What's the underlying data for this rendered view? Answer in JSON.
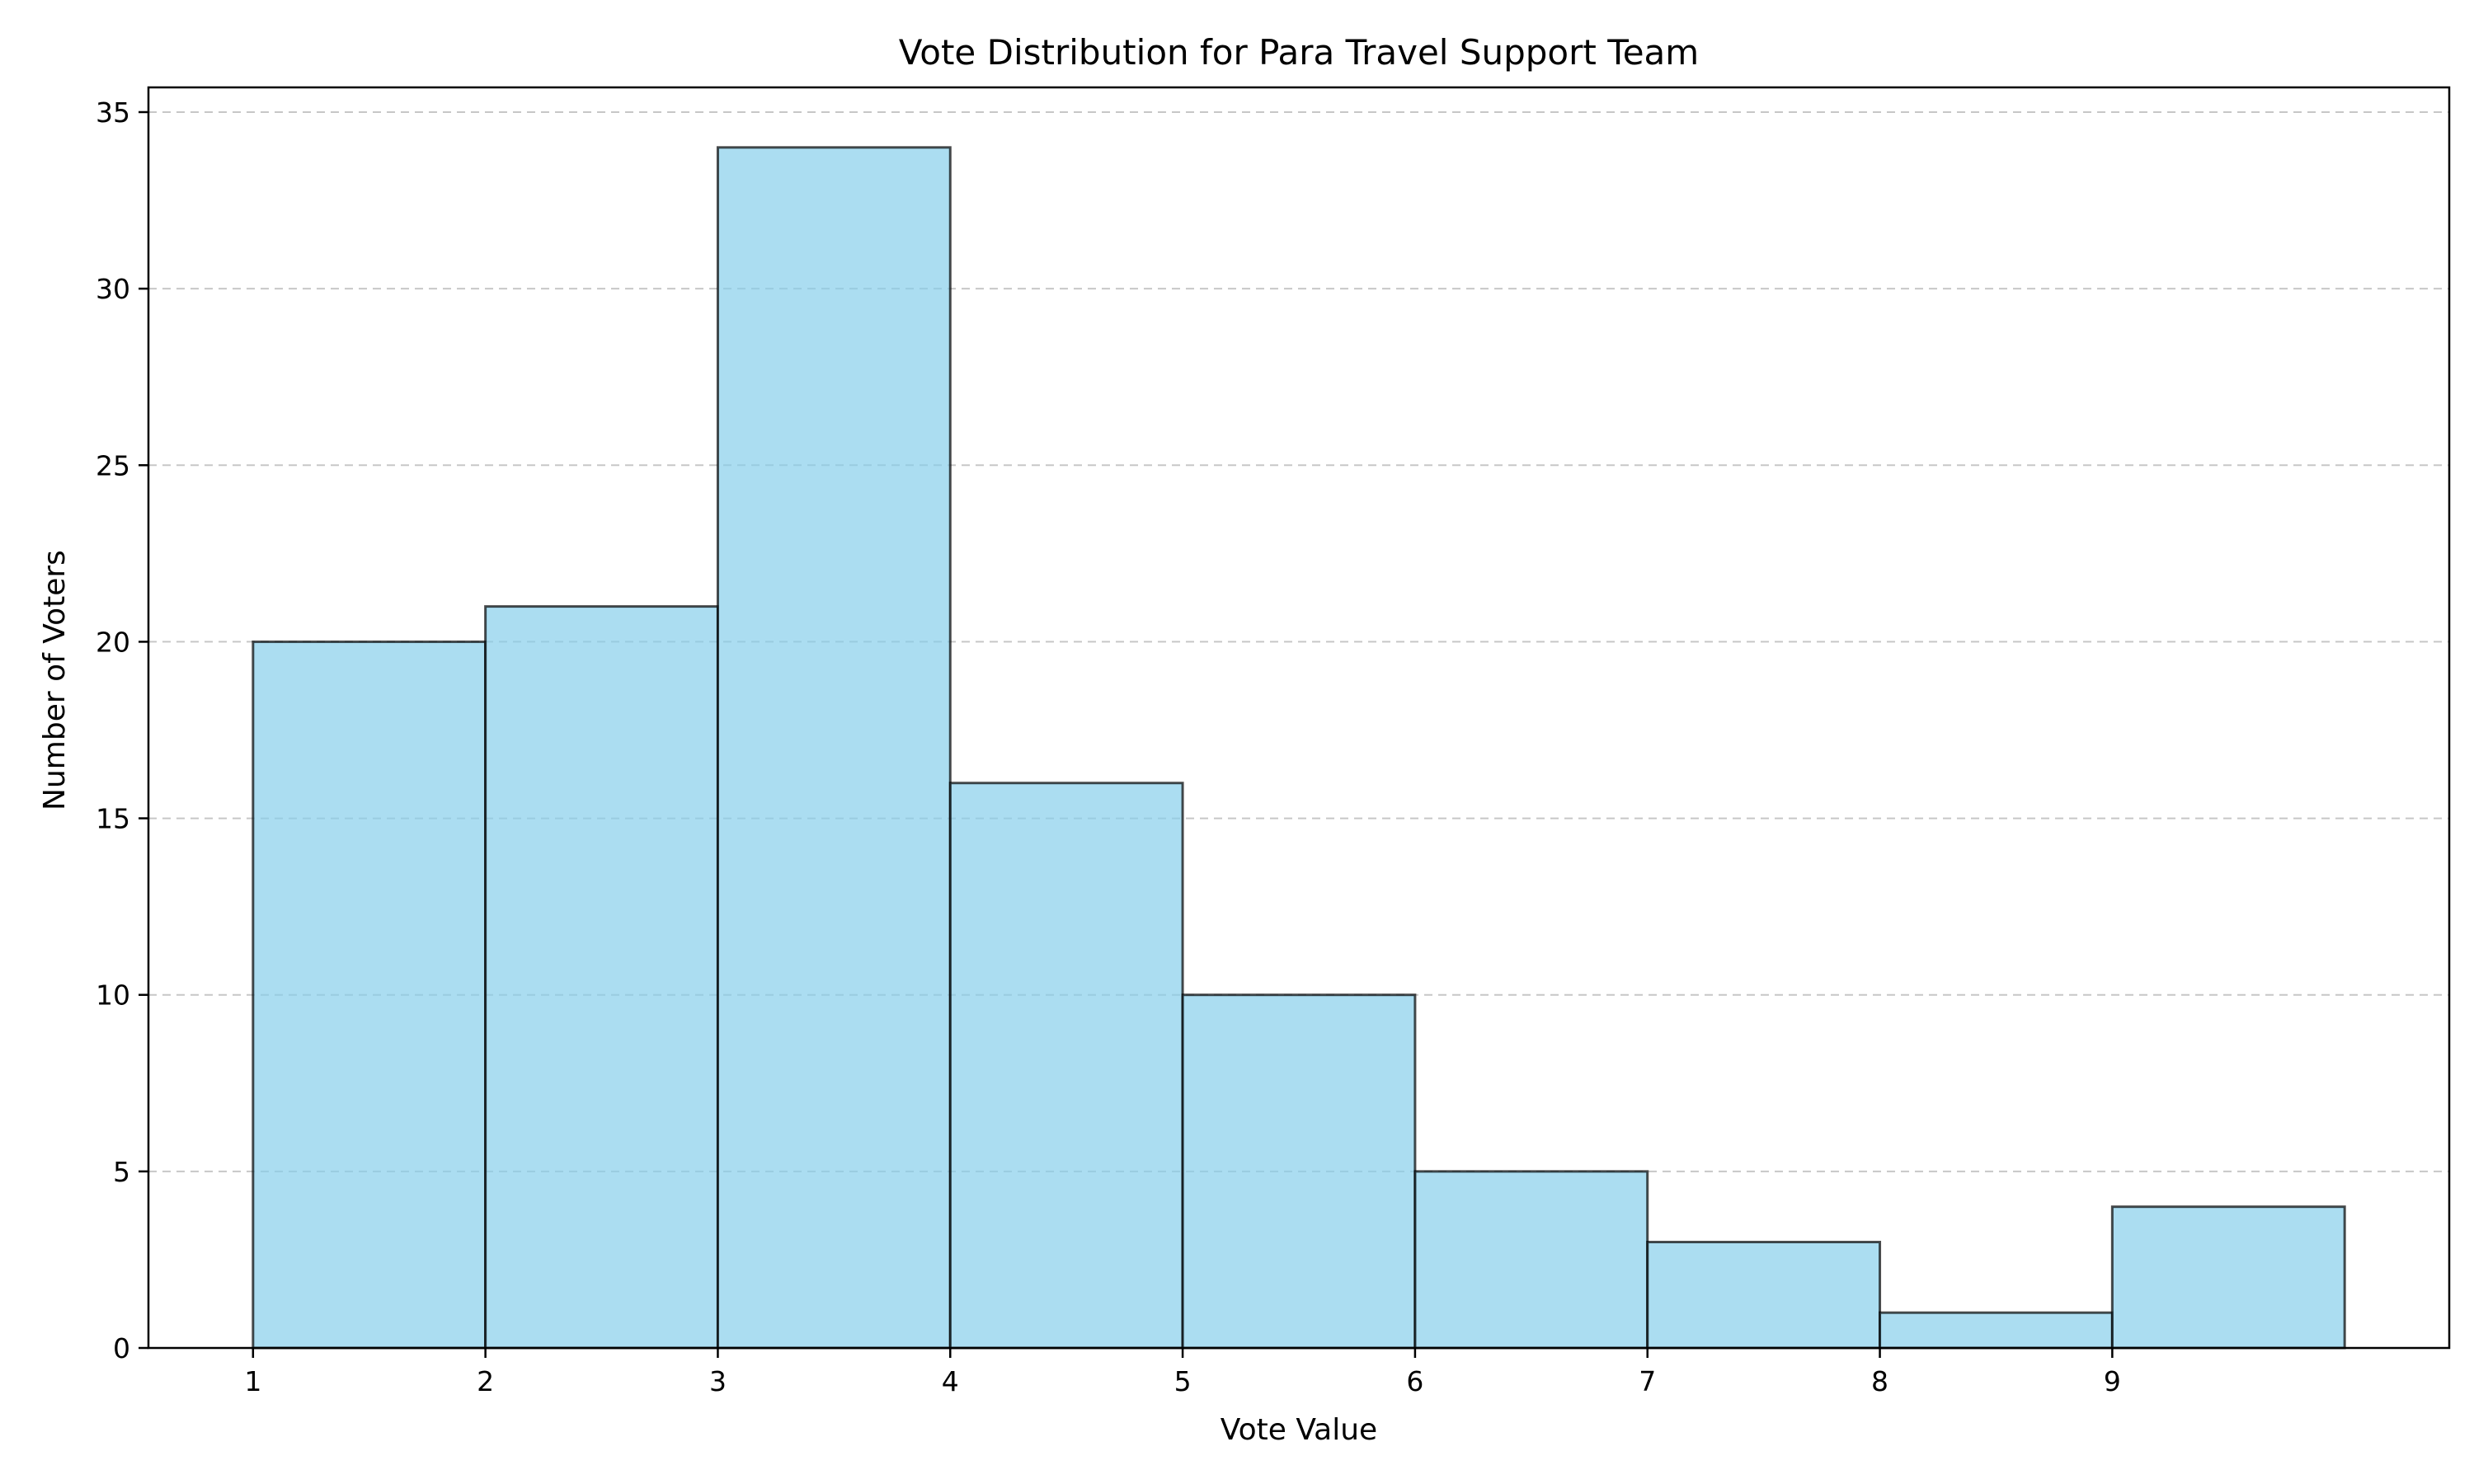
{
  "chart_data": {
    "type": "bar",
    "title": "Vote Distribution for Para Travel Support Team",
    "xlabel": "Vote Value",
    "ylabel": "Number of Voters",
    "bins": [
      {
        "start": 1,
        "end": 2,
        "count": 20
      },
      {
        "start": 2,
        "end": 3,
        "count": 21
      },
      {
        "start": 3,
        "end": 4,
        "count": 34
      },
      {
        "start": 4,
        "end": 5,
        "count": 16
      },
      {
        "start": 5,
        "end": 6,
        "count": 10
      },
      {
        "start": 6,
        "end": 7,
        "count": 5
      },
      {
        "start": 7,
        "end": 8,
        "count": 3
      },
      {
        "start": 8,
        "end": 9,
        "count": 1
      },
      {
        "start": 9,
        "end": 10,
        "count": 4
      }
    ],
    "xticks": [
      "1",
      "2",
      "3",
      "4",
      "5",
      "6",
      "7",
      "8",
      "9"
    ],
    "yticks": [
      "0",
      "5",
      "10",
      "15",
      "20",
      "25",
      "30",
      "35"
    ],
    "xlim": [
      0.55,
      10.45
    ],
    "ylim": [
      0,
      35.7
    ],
    "grid": "y-dashed",
    "bar_color": "#87CEEB",
    "edge_color": "#000000"
  }
}
